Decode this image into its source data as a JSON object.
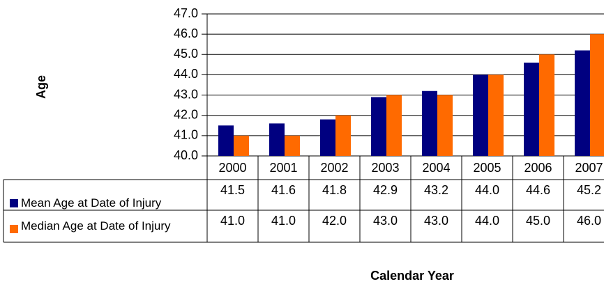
{
  "chart_data": {
    "type": "bar",
    "y_label": "Age",
    "x_label": "Calendar Year",
    "categories": [
      "2000",
      "2001",
      "2002",
      "2003",
      "2004",
      "2005",
      "2006",
      "2007"
    ],
    "series": [
      {
        "name": "Mean Age at Date of Injury",
        "color": "#000080",
        "values": [
          41.5,
          41.6,
          41.8,
          42.9,
          43.2,
          44.0,
          44.6,
          45.2
        ],
        "value_labels": [
          "41.5",
          "41.6",
          "41.8",
          "42.9",
          "43.2",
          "44.0",
          "44.6",
          "45.2"
        ]
      },
      {
        "name": "Median Age at Date of Injury",
        "color": "#ff6a00",
        "values": [
          41.0,
          41.0,
          42.0,
          43.0,
          43.0,
          44.0,
          45.0,
          46.0
        ],
        "value_labels": [
          "41.0",
          "41.0",
          "42.0",
          "43.0",
          "43.0",
          "44.0",
          "45.0",
          "46.0"
        ]
      }
    ],
    "ylim": [
      40,
      47
    ],
    "yticks": [
      {
        "value": 40,
        "label": "40.0"
      },
      {
        "value": 41,
        "label": "41.0"
      },
      {
        "value": 42,
        "label": "42.0"
      },
      {
        "value": 43,
        "label": "43.0"
      },
      {
        "value": 44,
        "label": "44.0"
      },
      {
        "value": 45,
        "label": "45.0"
      },
      {
        "value": 46,
        "label": "46.0"
      },
      {
        "value": 47,
        "label": "47.0"
      }
    ],
    "grid": true
  }
}
